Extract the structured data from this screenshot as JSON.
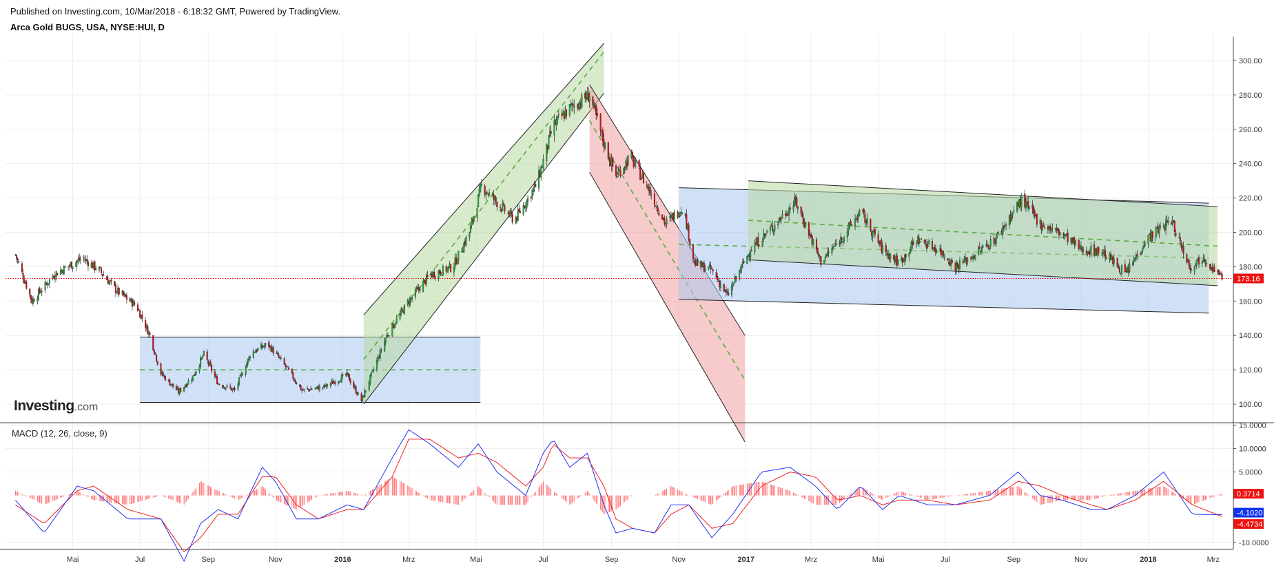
{
  "header": {
    "published": "Published on Investing.com, 10/Mar/2018 - 6:18:32 GMT, Powered by TradingView.",
    "symbol": "Arca Gold BUGS, USA, NYSE:HUI, D"
  },
  "logo": {
    "word": "Investing",
    "suffix": ".com"
  },
  "colors": {
    "up": "#22a33a",
    "down": "#c0151a",
    "macd": "#2233ee",
    "signal": "#ee2222",
    "hist": "#ff5555",
    "blue_fill": "#aac8f0",
    "green_fill": "#b6d9a2",
    "red_fill": "#f0a0a0",
    "dashed": "#5aaa3a",
    "price_line": "#ee0000"
  },
  "chart_data": [
    {
      "type": "candlestick",
      "title": "Arca Gold BUGS, USA, NYSE:HUI, D",
      "x_ticks": [
        "Mai",
        "Jul",
        "Sep",
        "Nov",
        "2016",
        "Mrz",
        "Mai",
        "Jul",
        "Sep",
        "Nov",
        "2017",
        "Mrz",
        "Mai",
        "Jul",
        "Sep",
        "Nov",
        "2018",
        "Mrz"
      ],
      "y_ticks": [
        "100.00",
        "120.00",
        "140.00",
        "160.00",
        "180.00",
        "200.00",
        "220.00",
        "240.00",
        "260.00",
        "280.00",
        "300.00"
      ],
      "ylim": [
        90,
        312
      ],
      "last_price": "173.16",
      "close_path": [
        [
          "2015-03-10",
          187
        ],
        [
          "2015-03-25",
          160
        ],
        [
          "2015-04-15",
          176
        ],
        [
          "2015-05-10",
          185
        ],
        [
          "2015-05-25",
          178
        ],
        [
          "2015-06-10",
          166
        ],
        [
          "2015-06-28",
          157
        ],
        [
          "2015-07-10",
          140
        ],
        [
          "2015-07-20",
          118
        ],
        [
          "2015-08-05",
          107
        ],
        [
          "2015-08-18",
          116
        ],
        [
          "2015-08-28",
          129
        ],
        [
          "2015-09-10",
          112
        ],
        [
          "2015-09-25",
          108
        ],
        [
          "2015-10-10",
          130
        ],
        [
          "2015-10-25",
          135
        ],
        [
          "2015-11-10",
          122
        ],
        [
          "2015-11-25",
          108
        ],
        [
          "2015-12-15",
          110
        ],
        [
          "2016-01-05",
          117
        ],
        [
          "2016-01-18",
          102
        ],
        [
          "2016-02-10",
          140
        ],
        [
          "2016-03-01",
          160
        ],
        [
          "2016-03-20",
          175
        ],
        [
          "2016-04-10",
          180
        ],
        [
          "2016-04-25",
          200
        ],
        [
          "2016-05-06",
          227
        ],
        [
          "2016-05-25",
          214
        ],
        [
          "2016-06-05",
          207
        ],
        [
          "2016-06-25",
          228
        ],
        [
          "2016-07-10",
          262
        ],
        [
          "2016-07-25",
          272
        ],
        [
          "2016-08-12",
          280
        ],
        [
          "2016-08-25",
          252
        ],
        [
          "2016-09-05",
          233
        ],
        [
          "2016-09-18",
          244
        ],
        [
          "2016-10-05",
          225
        ],
        [
          "2016-10-20",
          205
        ],
        [
          "2016-11-05",
          215
        ],
        [
          "2016-11-15",
          182
        ],
        [
          "2016-12-01",
          178
        ],
        [
          "2016-12-15",
          163
        ],
        [
          "2017-01-05",
          190
        ],
        [
          "2017-01-25",
          203
        ],
        [
          "2017-02-15",
          218
        ],
        [
          "2017-03-10",
          183
        ],
        [
          "2017-03-28",
          196
        ],
        [
          "2017-04-15",
          212
        ],
        [
          "2017-05-05",
          190
        ],
        [
          "2017-05-20",
          182
        ],
        [
          "2017-06-05",
          196
        ],
        [
          "2017-06-25",
          190
        ],
        [
          "2017-07-10",
          180
        ],
        [
          "2017-07-25",
          186
        ],
        [
          "2017-08-15",
          196
        ],
        [
          "2017-09-08",
          219
        ],
        [
          "2017-09-25",
          205
        ],
        [
          "2017-10-15",
          199
        ],
        [
          "2017-11-01",
          190
        ],
        [
          "2017-11-20",
          189
        ],
        [
          "2017-12-12",
          176
        ],
        [
          "2017-12-30",
          196
        ],
        [
          "2018-01-22",
          207
        ],
        [
          "2018-02-08",
          180
        ],
        [
          "2018-02-20",
          186
        ],
        [
          "2018-03-09",
          173
        ]
      ],
      "channels": [
        {
          "name": "range-2015",
          "fill": "blue",
          "top": [
            [
              "2015-07-01",
              139
            ],
            [
              "2016-05-05",
              139
            ]
          ],
          "bottom": [
            [
              "2015-07-01",
              101
            ],
            [
              "2016-05-05",
              101
            ]
          ],
          "mid": [
            [
              "2015-07-01",
              120
            ],
            [
              "2016-05-05",
              120
            ]
          ]
        },
        {
          "name": "uptrend-2016",
          "fill": "green",
          "top": [
            [
              "2016-01-20",
              152
            ],
            [
              "2016-08-25",
              310
            ]
          ],
          "bottom": [
            [
              "2016-01-20",
              100
            ],
            [
              "2016-08-25",
              281
            ]
          ],
          "mid": [
            [
              "2016-01-20",
              126
            ],
            [
              "2016-08-25",
              305
            ]
          ]
        },
        {
          "name": "downtrend-2016",
          "fill": "red",
          "top": [
            [
              "2016-08-12",
              286
            ],
            [
              "2016-12-31",
              140
            ]
          ],
          "bottom": [
            [
              "2016-08-12",
              235
            ],
            [
              "2016-12-31",
              78
            ]
          ],
          "mid": [
            [
              "2016-08-12",
              265
            ],
            [
              "2016-12-31",
              114
            ]
          ]
        },
        {
          "name": "range-blue-2017",
          "fill": "blue",
          "top": [
            [
              "2016-11-01",
              226
            ],
            [
              "2018-02-25",
              217
            ]
          ],
          "bottom": [
            [
              "2016-11-01",
              161
            ],
            [
              "2018-02-25",
              153
            ]
          ],
          "mid": [
            [
              "2016-11-01",
              193
            ],
            [
              "2018-02-25",
              185
            ]
          ]
        },
        {
          "name": "range-green-2017",
          "fill": "green",
          "top": [
            [
              "2017-01-03",
              230
            ],
            [
              "2018-03-05",
              215
            ]
          ],
          "bottom": [
            [
              "2017-01-03",
              184
            ],
            [
              "2018-03-05",
              169
            ]
          ],
          "mid": [
            [
              "2017-01-03",
              207
            ],
            [
              "2018-03-05",
              192
            ]
          ]
        }
      ]
    },
    {
      "type": "line",
      "title": "MACD (12, 26, close, 9)",
      "y_ticks": [
        "15.0000",
        "10.0000",
        "5.0000",
        "-10.0000"
      ],
      "ylim": [
        -11.5,
        15.5
      ],
      "macd_value": "0.3714",
      "macd_line_value": "-4.1020",
      "signal_value": "-4.4734",
      "series": [
        {
          "name": "MACD",
          "points": [
            [
              "2015-03-10",
              -1
            ],
            [
              "2015-04-05",
              -8
            ],
            [
              "2015-05-05",
              2
            ],
            [
              "2015-05-20",
              1
            ],
            [
              "2015-06-20",
              -5
            ],
            [
              "2015-07-20",
              -5
            ],
            [
              "2015-08-10",
              -14
            ],
            [
              "2015-08-25",
              -6
            ],
            [
              "2015-09-10",
              -3
            ],
            [
              "2015-09-28",
              -5
            ],
            [
              "2015-10-20",
              6
            ],
            [
              "2015-11-01",
              3
            ],
            [
              "2015-11-20",
              -5
            ],
            [
              "2015-12-10",
              -5
            ],
            [
              "2016-01-05",
              -2
            ],
            [
              "2016-01-20",
              -3
            ],
            [
              "2016-02-15",
              8
            ],
            [
              "2016-03-01",
              14
            ],
            [
              "2016-03-20",
              11
            ],
            [
              "2016-04-15",
              6
            ],
            [
              "2016-05-03",
              11
            ],
            [
              "2016-05-20",
              5
            ],
            [
              "2016-06-15",
              0
            ],
            [
              "2016-07-01",
              9
            ],
            [
              "2016-07-10",
              12
            ],
            [
              "2016-07-25",
              6
            ],
            [
              "2016-08-10",
              9
            ],
            [
              "2016-08-25",
              -2
            ],
            [
              "2016-09-05",
              -8
            ],
            [
              "2016-09-20",
              -7
            ],
            [
              "2016-10-10",
              -8
            ],
            [
              "2016-10-25",
              -2
            ],
            [
              "2016-11-10",
              -2
            ],
            [
              "2016-12-01",
              -9
            ],
            [
              "2016-12-20",
              -4
            ],
            [
              "2017-01-15",
              5
            ],
            [
              "2017-02-10",
              6
            ],
            [
              "2017-03-05",
              2
            ],
            [
              "2017-03-25",
              -3
            ],
            [
              "2017-04-15",
              2
            ],
            [
              "2017-05-05",
              -3
            ],
            [
              "2017-05-20",
              0
            ],
            [
              "2017-06-15",
              -2
            ],
            [
              "2017-07-10",
              -2
            ],
            [
              "2017-08-10",
              0
            ],
            [
              "2017-09-05",
              5
            ],
            [
              "2017-09-25",
              0
            ],
            [
              "2017-10-15",
              -1
            ],
            [
              "2017-11-10",
              -3
            ],
            [
              "2017-11-25",
              -3
            ],
            [
              "2017-12-20",
              0
            ],
            [
              "2018-01-15",
              5
            ],
            [
              "2018-02-10",
              -4
            ],
            [
              "2018-03-09",
              -4.1
            ]
          ]
        },
        {
          "name": "Signal",
          "points": [
            [
              "2015-03-10",
              -2
            ],
            [
              "2015-04-05",
              -6
            ],
            [
              "2015-05-05",
              1
            ],
            [
              "2015-05-20",
              2
            ],
            [
              "2015-06-20",
              -3
            ],
            [
              "2015-07-20",
              -5
            ],
            [
              "2015-08-10",
              -12
            ],
            [
              "2015-08-25",
              -9
            ],
            [
              "2015-09-10",
              -4
            ],
            [
              "2015-09-28",
              -4
            ],
            [
              "2015-10-20",
              4
            ],
            [
              "2015-11-01",
              4
            ],
            [
              "2015-11-20",
              -2
            ],
            [
              "2015-12-10",
              -5
            ],
            [
              "2016-01-05",
              -3
            ],
            [
              "2016-01-20",
              -3
            ],
            [
              "2016-02-15",
              4
            ],
            [
              "2016-03-01",
              12
            ],
            [
              "2016-03-20",
              12
            ],
            [
              "2016-04-15",
              8
            ],
            [
              "2016-05-03",
              9
            ],
            [
              "2016-05-20",
              7
            ],
            [
              "2016-06-15",
              2
            ],
            [
              "2016-07-01",
              6
            ],
            [
              "2016-07-10",
              11
            ],
            [
              "2016-07-25",
              8
            ],
            [
              "2016-08-10",
              8
            ],
            [
              "2016-08-25",
              2
            ],
            [
              "2016-09-05",
              -5
            ],
            [
              "2016-09-20",
              -7
            ],
            [
              "2016-10-10",
              -8
            ],
            [
              "2016-10-25",
              -4
            ],
            [
              "2016-11-10",
              -2
            ],
            [
              "2016-12-01",
              -7
            ],
            [
              "2016-12-20",
              -6
            ],
            [
              "2017-01-15",
              2
            ],
            [
              "2017-02-10",
              5
            ],
            [
              "2017-03-05",
              4
            ],
            [
              "2017-03-25",
              -1
            ],
            [
              "2017-04-15",
              0
            ],
            [
              "2017-05-05",
              -2
            ],
            [
              "2017-05-20",
              -1
            ],
            [
              "2017-06-15",
              -1
            ],
            [
              "2017-07-10",
              -2
            ],
            [
              "2017-08-10",
              -1
            ],
            [
              "2017-09-05",
              3
            ],
            [
              "2017-09-25",
              2
            ],
            [
              "2017-10-15",
              0
            ],
            [
              "2017-11-10",
              -2
            ],
            [
              "2017-11-25",
              -3
            ],
            [
              "2017-12-20",
              -1
            ],
            [
              "2018-01-15",
              3
            ],
            [
              "2018-02-10",
              -2
            ],
            [
              "2018-03-09",
              -4.5
            ]
          ]
        }
      ]
    }
  ]
}
